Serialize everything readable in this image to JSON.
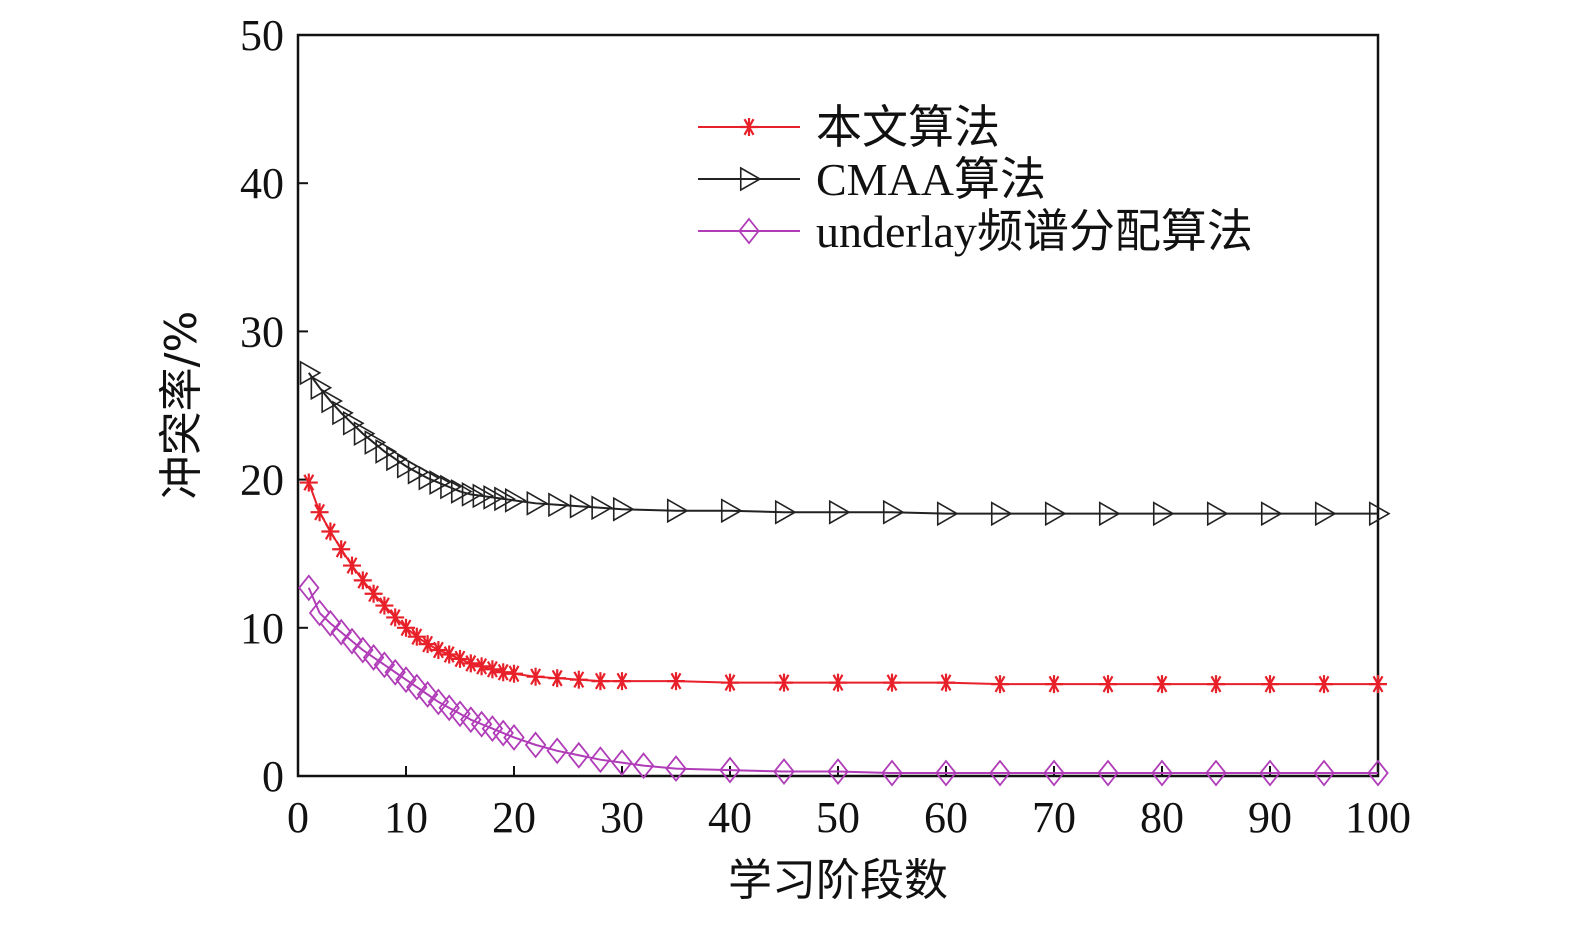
{
  "chart_data": {
    "type": "line",
    "xlabel": "学习阶段数",
    "ylabel": "冲突率/%",
    "xlim": [
      0,
      100
    ],
    "ylim": [
      0,
      50
    ],
    "xticks": [
      0,
      10,
      20,
      30,
      40,
      50,
      60,
      70,
      80,
      90,
      100
    ],
    "yticks": [
      0,
      10,
      20,
      30,
      40,
      50
    ],
    "legend_position": "top-right",
    "grid": false,
    "series": [
      {
        "name": "本文算法",
        "color": "#e8202a",
        "marker": "asterisk",
        "x": [
          1,
          2,
          3,
          4,
          5,
          6,
          7,
          8,
          9,
          10,
          11,
          12,
          13,
          14,
          15,
          16,
          17,
          18,
          19,
          20,
          22,
          24,
          26,
          28,
          30,
          35,
          40,
          45,
          50,
          55,
          60,
          65,
          70,
          75,
          80,
          85,
          90,
          95,
          100
        ],
        "y": [
          19.8,
          17.8,
          16.5,
          15.3,
          14.2,
          13.2,
          12.3,
          11.5,
          10.7,
          10.0,
          9.4,
          8.9,
          8.5,
          8.2,
          7.9,
          7.6,
          7.4,
          7.2,
          7.0,
          6.9,
          6.7,
          6.6,
          6.5,
          6.4,
          6.4,
          6.4,
          6.3,
          6.3,
          6.3,
          6.3,
          6.3,
          6.2,
          6.2,
          6.2,
          6.2,
          6.2,
          6.2,
          6.2,
          6.2
        ]
      },
      {
        "name": "CMAA算法",
        "color": "#222222",
        "marker": "triangle-right",
        "x": [
          1,
          2,
          3,
          4,
          5,
          6,
          7,
          8,
          9,
          10,
          11,
          12,
          13,
          14,
          15,
          16,
          17,
          18,
          19,
          20,
          22,
          24,
          26,
          28,
          30,
          35,
          40,
          45,
          50,
          55,
          60,
          65,
          70,
          75,
          80,
          85,
          90,
          95,
          100
        ],
        "y": [
          27.2,
          26.2,
          25.3,
          24.5,
          23.8,
          23.1,
          22.5,
          21.9,
          21.4,
          20.9,
          20.5,
          20.1,
          19.8,
          19.5,
          19.2,
          19.0,
          18.9,
          18.8,
          18.7,
          18.6,
          18.4,
          18.3,
          18.2,
          18.1,
          18.0,
          17.9,
          17.9,
          17.8,
          17.8,
          17.8,
          17.7,
          17.7,
          17.7,
          17.7,
          17.7,
          17.7,
          17.7,
          17.7,
          17.7
        ]
      },
      {
        "name": "underlay频谱分配算法",
        "color": "#b03cb8",
        "marker": "diamond",
        "x": [
          1,
          2,
          3,
          4,
          5,
          6,
          7,
          8,
          9,
          10,
          11,
          12,
          13,
          14,
          15,
          16,
          17,
          18,
          19,
          20,
          22,
          24,
          26,
          28,
          30,
          32,
          35,
          40,
          45,
          50,
          55,
          60,
          65,
          70,
          75,
          80,
          85,
          90,
          95,
          100
        ],
        "y": [
          12.7,
          11.0,
          10.3,
          9.7,
          9.1,
          8.5,
          8.0,
          7.5,
          7.0,
          6.5,
          6.0,
          5.5,
          5.0,
          4.6,
          4.2,
          3.8,
          3.5,
          3.2,
          2.9,
          2.6,
          2.1,
          1.7,
          1.4,
          1.1,
          0.9,
          0.7,
          0.5,
          0.4,
          0.3,
          0.3,
          0.2,
          0.2,
          0.2,
          0.2,
          0.2,
          0.2,
          0.2,
          0.2,
          0.2,
          0.2
        ]
      }
    ]
  }
}
